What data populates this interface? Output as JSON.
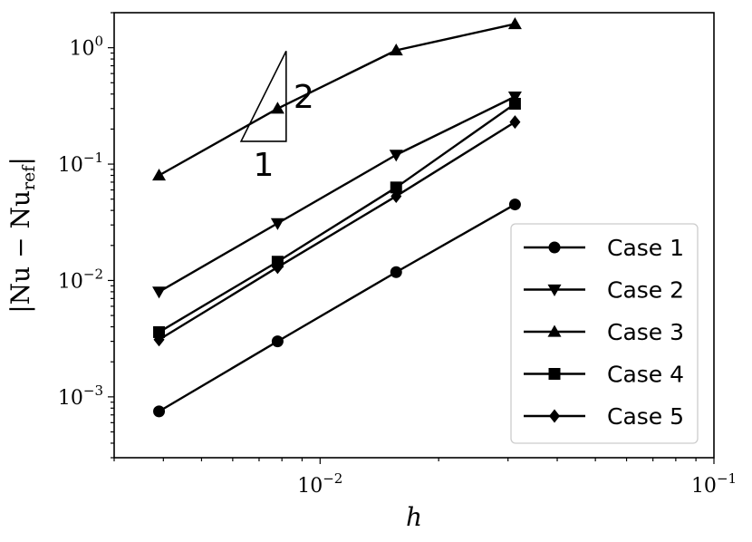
{
  "chart_data": {
    "type": "line",
    "title": "",
    "xlabel": "h",
    "ylabel": "|Nu − Nu_ref|",
    "ylabel_parts": {
      "left": "|Nu − Nu",
      "sub": "ref",
      "right": "|"
    },
    "x_scale": "log",
    "y_scale": "log",
    "xlim": [
      0.003,
      0.1
    ],
    "ylim": [
      0.0003,
      2.0
    ],
    "grid": false,
    "legend_position": "lower-right",
    "x_ticks": [
      {
        "value": 0.01,
        "base": "10",
        "exp": "−2"
      },
      {
        "value": 0.1,
        "base": "10",
        "exp": "−1"
      }
    ],
    "y_ticks": [
      {
        "value": 0.001,
        "base": "10",
        "exp": "−3"
      },
      {
        "value": 0.01,
        "base": "10",
        "exp": "−2"
      },
      {
        "value": 0.1,
        "base": "10",
        "exp": "−1"
      },
      {
        "value": 1.0,
        "base": "10",
        "exp": "0"
      }
    ],
    "x": [
      0.0039,
      0.0078,
      0.0156,
      0.03125
    ],
    "series": [
      {
        "name": "Case 1",
        "marker": "circle",
        "values": [
          0.00075,
          0.003,
          0.0118,
          0.045
        ]
      },
      {
        "name": "Case 2",
        "marker": "triangle-down",
        "values": [
          0.008,
          0.031,
          0.12,
          0.38
        ]
      },
      {
        "name": "Case 3",
        "marker": "triangle-up",
        "values": [
          0.08,
          0.3,
          0.95,
          1.6
        ]
      },
      {
        "name": "Case 4",
        "marker": "square",
        "values": [
          0.0036,
          0.0145,
          0.063,
          0.33
        ]
      },
      {
        "name": "Case 5",
        "marker": "diamond",
        "values": [
          0.0031,
          0.013,
          0.053,
          0.23
        ]
      }
    ],
    "annotations": {
      "slope_triangle": {
        "run_label": "1",
        "rise_label": "2"
      }
    },
    "colors": {
      "line": "#000000",
      "background": "#ffffff",
      "legend_border": "#cccccc"
    }
  }
}
